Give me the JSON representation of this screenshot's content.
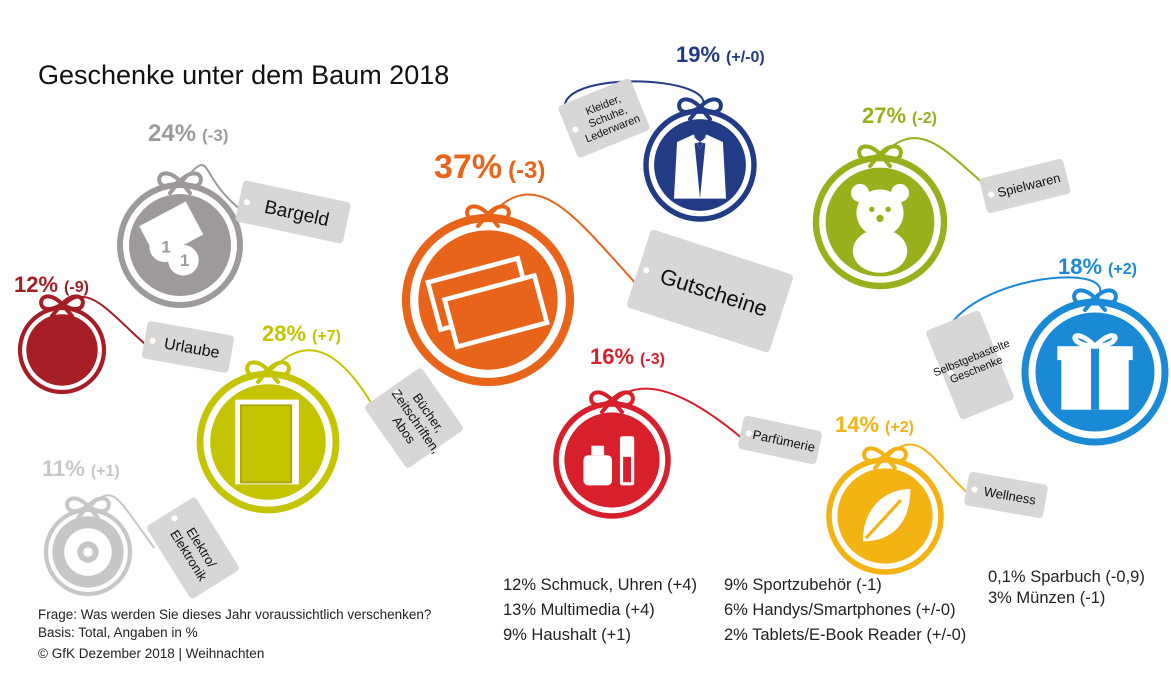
{
  "title": "Geschenke unter dem Baum 2018",
  "chart_data": {
    "type": "bubble-infographic",
    "title": "Geschenke unter dem Baum 2018",
    "unit": "%",
    "categories": [
      {
        "id": "bargeld",
        "label": "Bargeld",
        "value": 24,
        "change": "(-3)",
        "color": "#9e9a9b",
        "icon": "money-icon"
      },
      {
        "id": "urlaube",
        "label": "Urlaube",
        "value": 12,
        "change": "(-9)",
        "color": "#a51e26",
        "icon": "beach-chair-icon"
      },
      {
        "id": "elektronik",
        "label": "Elektro/\nElektronik",
        "value": 11,
        "change": "(+1)",
        "color": "#c9c6c6",
        "icon": "cd-icon"
      },
      {
        "id": "buecher",
        "label": "Bücher,\nZeitschriften,\nAbos",
        "value": 28,
        "change": "(+7)",
        "color": "#c4c400",
        "icon": "book-icon"
      },
      {
        "id": "gutscheine",
        "label": "Gutscheine",
        "value": 37,
        "change": "(-3)",
        "color": "#e8641b",
        "icon": "voucher-icon"
      },
      {
        "id": "kleider",
        "label": "Kleider,\nSchuhe,\nLederwaren",
        "value": 19,
        "change": "(+/-0)",
        "color": "#213b85",
        "icon": "suit-icon"
      },
      {
        "id": "parfuemerie",
        "label": "Parfümerie",
        "value": 16,
        "change": "(-3)",
        "color": "#d7202c",
        "icon": "perfume-icon"
      },
      {
        "id": "spielwaren",
        "label": "Spielwaren",
        "value": 27,
        "change": "(-2)",
        "color": "#9aaf1c",
        "icon": "teddy-bear-icon"
      },
      {
        "id": "selbstgebastelte",
        "label": "Selbstgebastelte\nGeschenke",
        "value": 18,
        "change": "(+2)",
        "color": "#1a8ad6",
        "icon": "gift-icon"
      },
      {
        "id": "wellness",
        "label": "Wellness",
        "value": 14,
        "change": "(+2)",
        "color": "#f3b312",
        "icon": "leaf-icon"
      }
    ],
    "other_items": [
      [
        "12% Schmuck, Uhren (+4)",
        "13% Multimedia (+4)",
        "9% Haushalt (+1)"
      ],
      [
        "9% Sportzubehör (-1)",
        "6% Handys/Smartphones (+/-0)",
        "2% Tablets/E-Book Reader (+/-0)"
      ],
      [
        "0,1% Sparbuch (-0,9)",
        "3% Münzen (-1)"
      ]
    ]
  },
  "footer": {
    "question": "Frage: Was werden Sie dieses Jahr voraussichtlich verschenken?",
    "basis": "Basis: Total, Angaben in %",
    "copyright": "© GfK Dezember 2018 | Weihnachten"
  }
}
